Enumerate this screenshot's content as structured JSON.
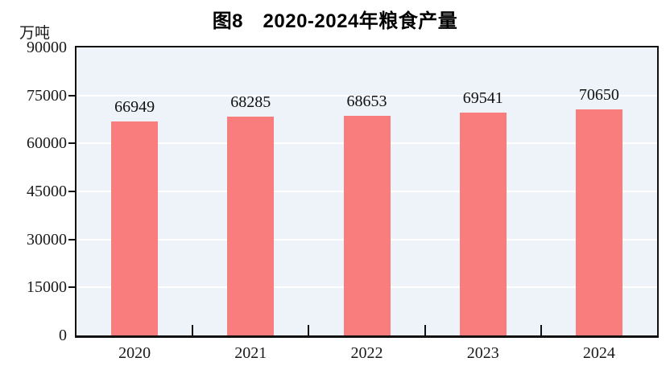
{
  "title": "图8　2020-2024年粮食产量",
  "unit_label": "万吨",
  "chart_data": {
    "type": "bar",
    "title": "图8　2020-2024年粮食产量",
    "categories": [
      "2020",
      "2021",
      "2022",
      "2023",
      "2024"
    ],
    "values": [
      66949,
      68285,
      68653,
      69541,
      70650
    ],
    "xlabel": "",
    "ylabel": "万吨",
    "ylim": [
      0,
      90000
    ],
    "yticks": [
      0,
      15000,
      30000,
      45000,
      60000,
      75000,
      90000
    ],
    "grid": true,
    "grid_color": "#ffffff",
    "legend": null,
    "data_labels": true,
    "bar_color": "#fa7d7d",
    "plot_bg_color": "#edf3f8",
    "axis_color": "#111111",
    "text_color": "#1a1a1a"
  }
}
